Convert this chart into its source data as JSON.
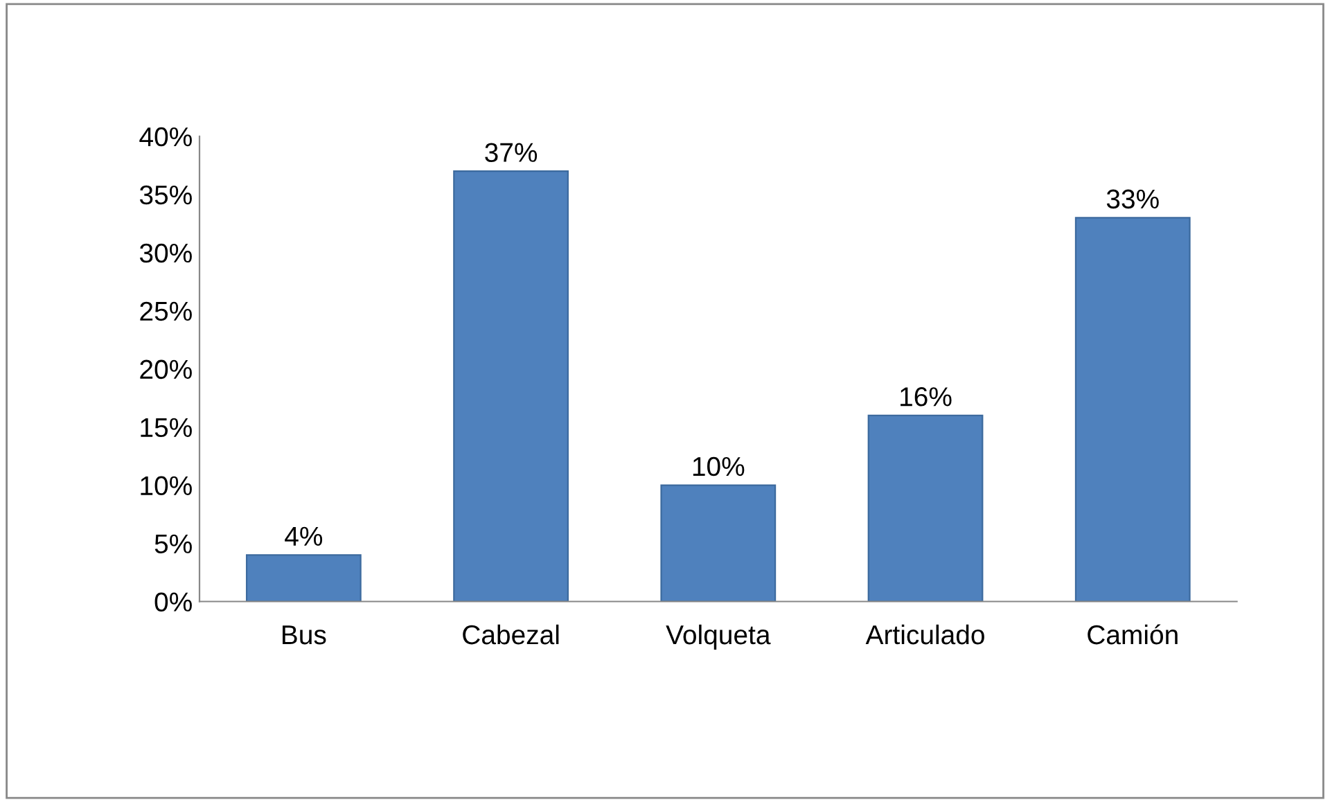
{
  "chart_data": {
    "type": "bar",
    "categories": [
      "Bus",
      "Cabezal",
      "Volqueta",
      "Articulado",
      "Camión"
    ],
    "values": [
      4,
      37,
      10,
      16,
      33
    ],
    "value_labels": [
      "4%",
      "37%",
      "10%",
      "16%",
      "33%"
    ],
    "color": "#4f81bd",
    "ylim": [
      0,
      40
    ],
    "yticks": [
      {
        "value": 0,
        "label": "0%"
      },
      {
        "value": 5,
        "label": "5%"
      },
      {
        "value": 10,
        "label": "10%"
      },
      {
        "value": 15,
        "label": "15%"
      },
      {
        "value": 20,
        "label": "20%"
      },
      {
        "value": 25,
        "label": "25%"
      },
      {
        "value": 30,
        "label": "30%"
      },
      {
        "value": 35,
        "label": "35%"
      },
      {
        "value": 40,
        "label": "40%"
      }
    ],
    "grid": false
  }
}
